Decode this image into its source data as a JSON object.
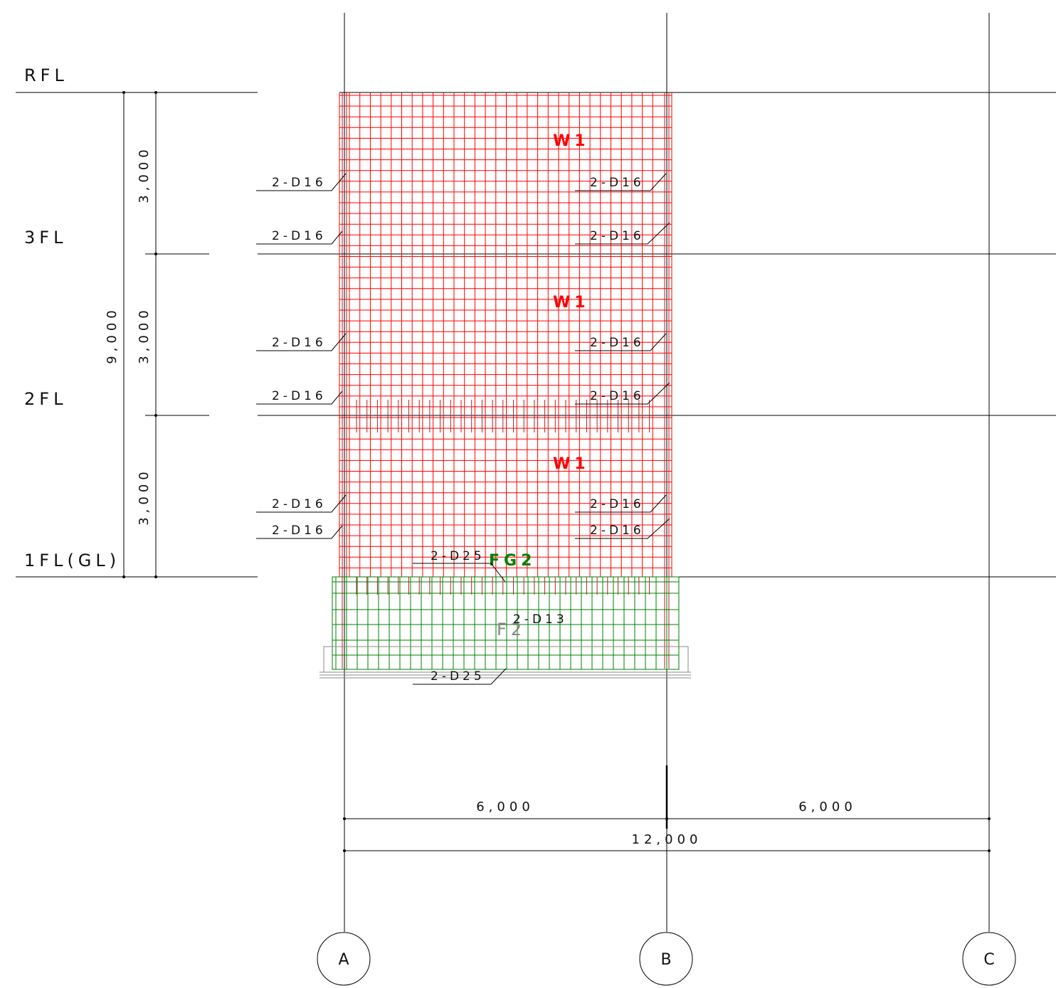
{
  "levels": [
    {
      "label": "RFL"
    },
    {
      "label": "3FL"
    },
    {
      "label": "2FL"
    },
    {
      "label": "1FL(GL)"
    }
  ],
  "vertical_dims": {
    "story": [
      "3,000",
      "3,000",
      "3,000"
    ],
    "total": "9,000"
  },
  "horizontal_dims": {
    "spans": [
      "6,000",
      "6,000"
    ],
    "total": "12,000"
  },
  "axes": [
    "A",
    "B",
    "C"
  ],
  "members": {
    "wall_labels": [
      "W1",
      "W1",
      "W1"
    ],
    "beam_label": "FG2",
    "footing_label": "F2"
  },
  "rebar_notes": {
    "column_a": [
      "2-D16",
      "2-D16",
      "2-D16",
      "2-D16",
      "2-D16",
      "2-D16"
    ],
    "column_b": [
      "2-D16",
      "2-D16",
      "2-D16",
      "2-D16",
      "2-D16",
      "2-D16"
    ],
    "beam_top": "2-D25",
    "beam_web": "2-D13",
    "beam_bottom": "2-D25"
  },
  "colors": {
    "wall_rebar": "#ff0000",
    "beam_rebar": "#008000",
    "column_rebar": "#b22222",
    "footing_text": "#888888",
    "line": "#000000"
  }
}
